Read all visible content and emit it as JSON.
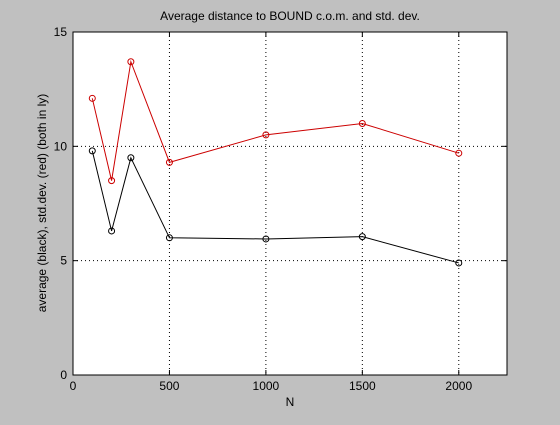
{
  "colors": {
    "figure_background": "#c0c0c0",
    "axes_background": "#ffffff",
    "average_series": "#000000",
    "stddev_series": "#cc0000"
  },
  "chart_data": {
    "type": "line",
    "title": "Average distance to BOUND c.o.m. and std. dev.",
    "xlabel": "N",
    "ylabel": "average (black), std.dev. (red) (both in ly)",
    "xlim": [
      0,
      2250
    ],
    "ylim": [
      0,
      15
    ],
    "xticks": [
      0,
      500,
      1000,
      1500,
      2000
    ],
    "yticks": [
      0,
      5,
      10,
      15
    ],
    "grid": "dotted",
    "marker": "circle",
    "x": [
      100,
      200,
      300,
      500,
      1000,
      1500,
      2000
    ],
    "series": [
      {
        "color": "#000000",
        "values": [
          9.8,
          6.3,
          9.5,
          6.0,
          5.95,
          6.05,
          4.9
        ]
      },
      {
        "color": "#cc0000",
        "values": [
          12.1,
          8.5,
          13.7,
          9.3,
          10.5,
          11.0,
          9.7
        ]
      }
    ]
  }
}
